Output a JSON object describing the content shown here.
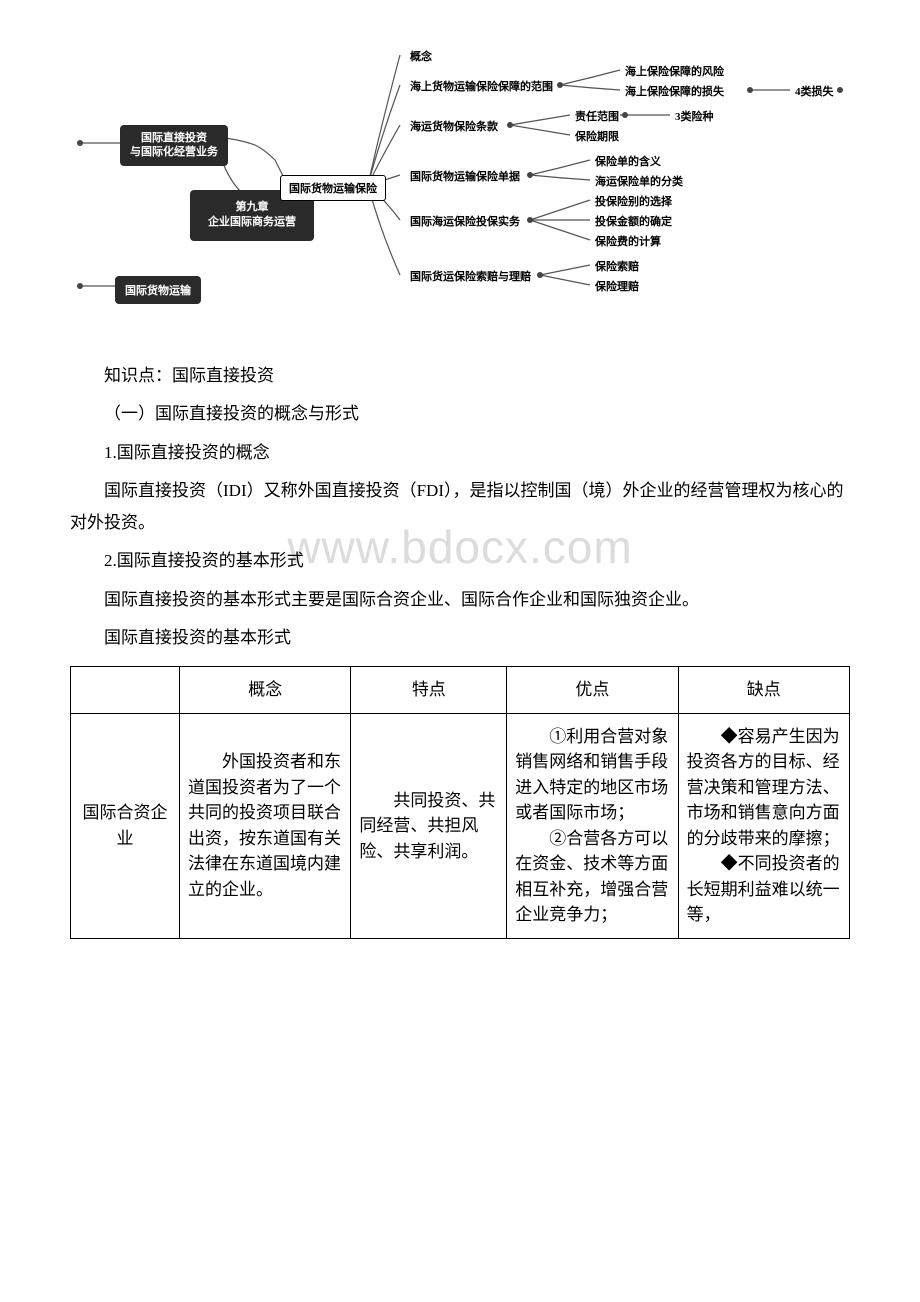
{
  "watermark": "www.bdocx.com",
  "diagram": {
    "center_title_l1": "第九章",
    "center_title_l2": "企业国际商务运营",
    "left_top_l1": "国际直接投资",
    "left_top_l2": "与国际化经营业务",
    "left_bottom": "国际货物运输",
    "mid_branch": "国际货物运输保险",
    "r1": "概念",
    "r2": "海上货物运输保险保障的范围",
    "r2a": "海上保险保障的风险",
    "r2b": "海上保险保障的损失",
    "r2b_tail": "4类损失",
    "r3": "海运货物保险条款",
    "r3a": "责任范围",
    "r3a_tail": "3类险种",
    "r3b": "保险期限",
    "r4": "国际货物运输保险单据",
    "r4a": "保险单的含义",
    "r4b": "海运保险单的分类",
    "r5": "国际海运保险投保实务",
    "r5a": "投保险别的选择",
    "r5b": "投保金额的确定",
    "r5c": "保险费的计算",
    "r6": "国际货运保险索赔与理赔",
    "r6a": "保险索赔",
    "r6b": "保险理赔"
  },
  "body": {
    "p1": "知识点：国际直接投资",
    "p2": "（一）国际直接投资的概念与形式",
    "p3": "1.国际直接投资的概念",
    "p4": "国际直接投资（IDI）又称外国直接投资（FDI），是指以控制国（境）外企业的经营管理权为核心的对外投资。",
    "p5": "2.国际直接投资的基本形式",
    "p6": "国际直接投资的基本形式主要是国际合资企业、国际合作企业和国际独资企业。",
    "p7": "国际直接投资的基本形式"
  },
  "table": {
    "headers": {
      "c1": "",
      "c2": "概念",
      "c3": "特点",
      "c4": "优点",
      "c5": "缺点"
    },
    "row1": {
      "label": "国际合资企业",
      "concept": "外国投资者和东道国投资者为了一个共同的投资项目联合出资，按东道国有关法律在东道国境内建立的企业。",
      "feature": "共同投资、共同经营、共担风险、共享利润。",
      "pro": "①利用合营对象销售网络和销售手段进入特定的地区市场或者国际市场；\n②合营各方可以在资金、技术等方面相互补充，增强合营企业竞争力；",
      "con": "◆容易产生因为投资各方的目标、经营决策和管理方法、市场和销售意向方面的分歧带来的摩擦；\n◆不同投资者的长短期利益难以统一等，"
    }
  }
}
